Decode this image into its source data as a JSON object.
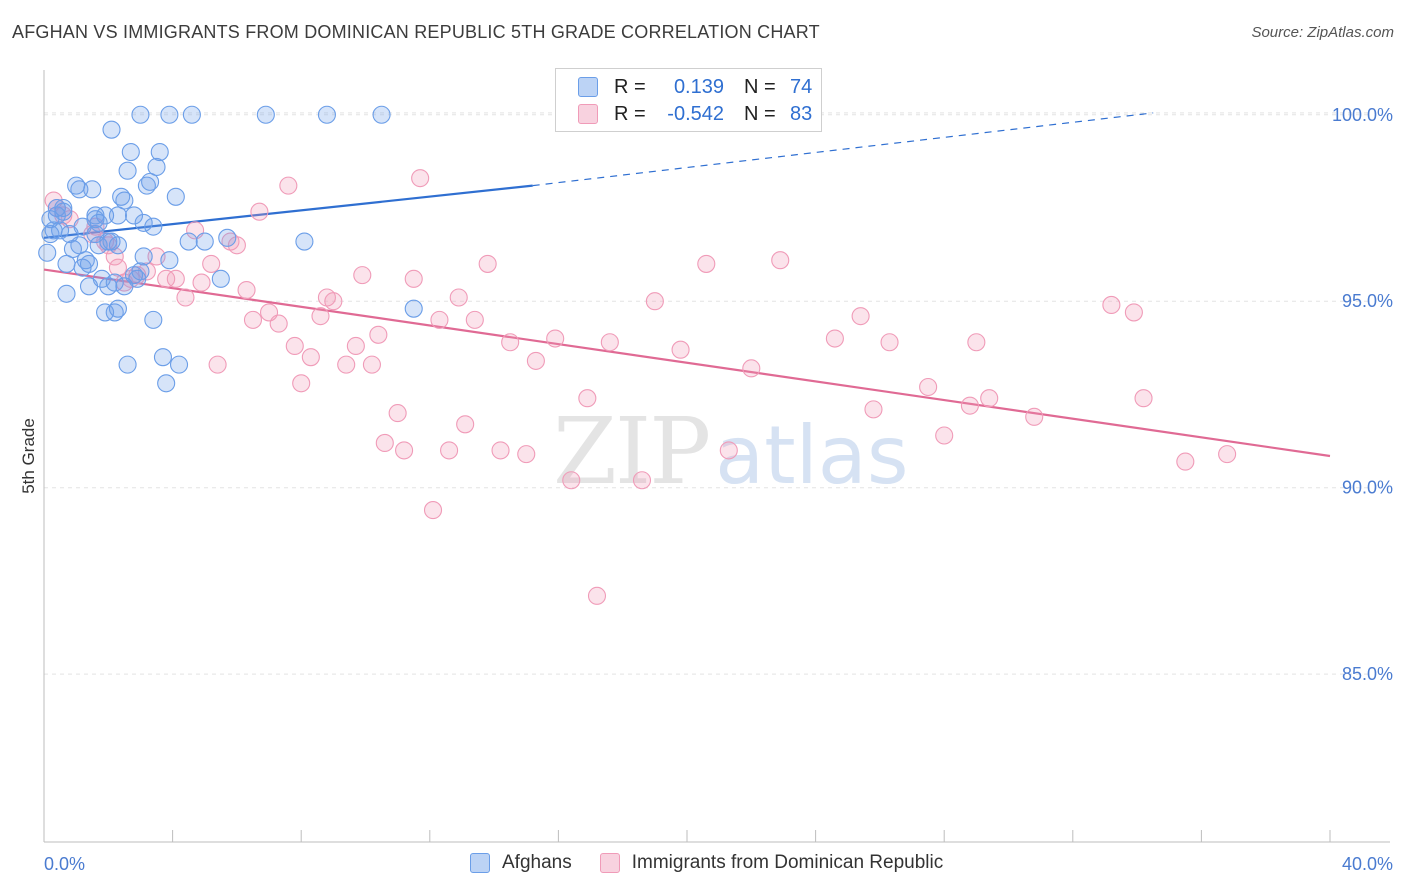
{
  "header": {
    "title": "AFGHAN VS IMMIGRANTS FROM DOMINICAN REPUBLIC 5TH GRADE CORRELATION CHART",
    "source": "Source: ZipAtlas.com"
  },
  "watermark": {
    "zip": "ZIP",
    "atlas": "atlas"
  },
  "legend": {
    "rows": [
      {
        "r_label": "R =",
        "r_value": "0.139",
        "n_label": "N =",
        "n_value": "74",
        "color": "#6b9ee8"
      },
      {
        "r_label": "R =",
        "r_value": "-0.542",
        "n_label": "N =",
        "n_value": "83",
        "color": "#f09bb8"
      }
    ]
  },
  "bottom_legend": [
    {
      "label": "Afghans",
      "color": "#6b9ee8"
    },
    {
      "label": "Immigrants from Dominican Republic",
      "color": "#f09bb8"
    }
  ],
  "chart_data": {
    "type": "scatter",
    "title": "AFGHAN VS IMMIGRANTS FROM DOMINICAN REPUBLIC 5TH GRADE CORRELATION CHART",
    "ylabel": "5th Grade",
    "xlabel": "",
    "xlim": [
      0,
      40
    ],
    "ylim": [
      80.5,
      101.2
    ],
    "x_tick_labels": [
      "0.0%",
      "40.0%"
    ],
    "y_ticks": [
      85,
      90,
      95,
      100
    ],
    "y_tick_labels": [
      "85.0%",
      "90.0%",
      "95.0%",
      "100.0%"
    ],
    "grid": true,
    "colors": {
      "afghans": "#6b9ee8",
      "dominican": "#f09bb8",
      "afghans_line": "#2f6fd1",
      "dominican_line": "#e06a94"
    },
    "series": [
      {
        "name": "Afghans",
        "trend": {
          "x": [
            0,
            15.2
          ],
          "y": [
            96.7,
            98.1
          ],
          "dashed_to": [
            34.5,
            100.05
          ]
        },
        "points": [
          [
            0.1,
            96.3
          ],
          [
            0.2,
            96.8
          ],
          [
            0.2,
            97.2
          ],
          [
            0.3,
            96.9
          ],
          [
            0.4,
            97.5
          ],
          [
            0.5,
            96.9
          ],
          [
            0.6,
            97.5
          ],
          [
            0.7,
            96.0
          ],
          [
            0.7,
            95.2
          ],
          [
            0.9,
            96.4
          ],
          [
            1.0,
            98.1
          ],
          [
            1.1,
            98.0
          ],
          [
            1.1,
            96.5
          ],
          [
            1.2,
            97.0
          ],
          [
            1.2,
            95.9
          ],
          [
            1.4,
            96.0
          ],
          [
            1.4,
            95.4
          ],
          [
            1.5,
            98.0
          ],
          [
            1.6,
            97.3
          ],
          [
            1.6,
            96.8
          ],
          [
            1.7,
            96.5
          ],
          [
            1.8,
            95.6
          ],
          [
            1.9,
            97.3
          ],
          [
            1.9,
            94.7
          ],
          [
            2.0,
            95.4
          ],
          [
            2.1,
            96.6
          ],
          [
            2.2,
            95.5
          ],
          [
            2.3,
            96.5
          ],
          [
            2.1,
            99.6
          ],
          [
            2.2,
            94.7
          ],
          [
            2.3,
            94.8
          ],
          [
            2.3,
            97.3
          ],
          [
            2.4,
            97.8
          ],
          [
            2.5,
            97.7
          ],
          [
            2.6,
            98.5
          ],
          [
            2.6,
            93.3
          ],
          [
            2.7,
            99.0
          ],
          [
            2.8,
            95.7
          ],
          [
            2.8,
            97.3
          ],
          [
            2.9,
            95.6
          ],
          [
            3.0,
            100.0
          ],
          [
            3.1,
            97.1
          ],
          [
            3.1,
            96.2
          ],
          [
            3.2,
            98.1
          ],
          [
            3.3,
            98.2
          ],
          [
            3.4,
            97.0
          ],
          [
            3.4,
            94.5
          ],
          [
            3.5,
            98.6
          ],
          [
            3.6,
            99.0
          ],
          [
            3.7,
            93.5
          ],
          [
            3.8,
            92.8
          ],
          [
            3.9,
            96.1
          ],
          [
            3.9,
            100.0
          ],
          [
            4.1,
            97.8
          ],
          [
            4.2,
            93.3
          ],
          [
            4.6,
            100.0
          ],
          [
            4.5,
            96.6
          ],
          [
            5.0,
            96.6
          ],
          [
            5.5,
            95.6
          ],
          [
            5.7,
            96.7
          ],
          [
            6.9,
            100.0
          ],
          [
            8.1,
            96.6
          ],
          [
            8.8,
            100.0
          ],
          [
            10.5,
            100.0
          ],
          [
            11.5,
            94.8
          ],
          [
            0.4,
            97.3
          ],
          [
            0.8,
            96.8
          ],
          [
            1.3,
            96.1
          ],
          [
            1.6,
            97.2
          ],
          [
            0.6,
            97.4
          ],
          [
            2.0,
            96.6
          ],
          [
            3.0,
            95.8
          ],
          [
            1.7,
            97.1
          ],
          [
            2.5,
            95.4
          ]
        ]
      },
      {
        "name": "Immigrants from Dominican Republic",
        "trend": {
          "x": [
            0,
            40
          ],
          "y": [
            95.85,
            90.85
          ]
        },
        "points": [
          [
            0.3,
            97.7
          ],
          [
            0.4,
            97.5
          ],
          [
            0.6,
            97.3
          ],
          [
            0.8,
            97.2
          ],
          [
            1.5,
            96.8
          ],
          [
            1.6,
            97.0
          ],
          [
            1.9,
            96.6
          ],
          [
            2.0,
            96.5
          ],
          [
            2.2,
            96.2
          ],
          [
            2.3,
            95.9
          ],
          [
            2.5,
            95.5
          ],
          [
            2.7,
            95.6
          ],
          [
            2.9,
            95.7
          ],
          [
            3.2,
            95.8
          ],
          [
            3.5,
            96.2
          ],
          [
            3.8,
            95.6
          ],
          [
            4.1,
            95.6
          ],
          [
            4.4,
            95.1
          ],
          [
            4.7,
            96.9
          ],
          [
            4.9,
            95.5
          ],
          [
            5.2,
            96.0
          ],
          [
            5.4,
            93.3
          ],
          [
            5.8,
            96.6
          ],
          [
            6.0,
            96.5
          ],
          [
            6.3,
            95.3
          ],
          [
            6.5,
            94.5
          ],
          [
            6.7,
            97.4
          ],
          [
            7.0,
            94.7
          ],
          [
            7.3,
            94.4
          ],
          [
            7.6,
            98.1
          ],
          [
            7.8,
            93.8
          ],
          [
            8.0,
            92.8
          ],
          [
            8.3,
            93.5
          ],
          [
            8.6,
            94.6
          ],
          [
            8.8,
            95.1
          ],
          [
            9.0,
            95.0
          ],
          [
            9.4,
            93.3
          ],
          [
            9.7,
            93.8
          ],
          [
            9.9,
            95.7
          ],
          [
            10.2,
            93.3
          ],
          [
            10.4,
            94.1
          ],
          [
            10.6,
            91.2
          ],
          [
            11.0,
            92.0
          ],
          [
            11.2,
            91.0
          ],
          [
            11.5,
            95.6
          ],
          [
            11.7,
            98.3
          ],
          [
            12.1,
            89.4
          ],
          [
            12.3,
            94.5
          ],
          [
            12.6,
            91.0
          ],
          [
            12.9,
            95.1
          ],
          [
            13.1,
            91.7
          ],
          [
            13.4,
            94.5
          ],
          [
            13.8,
            96.0
          ],
          [
            14.2,
            91.0
          ],
          [
            14.5,
            93.9
          ],
          [
            15.0,
            90.9
          ],
          [
            15.3,
            93.4
          ],
          [
            15.9,
            94.0
          ],
          [
            16.4,
            90.2
          ],
          [
            16.9,
            92.4
          ],
          [
            17.2,
            87.1
          ],
          [
            17.6,
            93.9
          ],
          [
            18.6,
            90.2
          ],
          [
            19.0,
            95.0
          ],
          [
            19.8,
            93.7
          ],
          [
            20.6,
            96.0
          ],
          [
            21.3,
            91.0
          ],
          [
            22.0,
            93.2
          ],
          [
            22.9,
            96.1
          ],
          [
            24.6,
            94.0
          ],
          [
            25.4,
            94.6
          ],
          [
            25.8,
            92.1
          ],
          [
            26.3,
            93.9
          ],
          [
            27.5,
            92.7
          ],
          [
            28.0,
            91.4
          ],
          [
            28.8,
            92.2
          ],
          [
            29.0,
            93.9
          ],
          [
            29.4,
            92.4
          ],
          [
            30.8,
            91.9
          ],
          [
            33.2,
            94.9
          ],
          [
            33.9,
            94.7
          ],
          [
            34.2,
            92.4
          ],
          [
            35.5,
            90.7
          ],
          [
            36.8,
            90.9
          ]
        ]
      }
    ]
  }
}
